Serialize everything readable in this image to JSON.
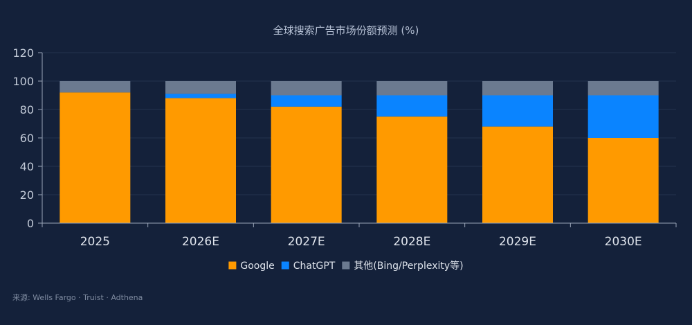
{
  "chart_data": {
    "type": "bar",
    "stacked": true,
    "title": "全球搜索广告市场份额预测 (%)",
    "categories": [
      "2025",
      "2026E",
      "2027E",
      "2028E",
      "2029E",
      "2030E"
    ],
    "series": [
      {
        "name": "Google",
        "color": "#ff9a00",
        "values": [
          92,
          88,
          82,
          75,
          68,
          60
        ]
      },
      {
        "name": "ChatGPT",
        "color": "#0a84ff",
        "values": [
          0,
          3,
          8,
          15,
          22,
          30
        ]
      },
      {
        "name": "其他(Bing/Perplexity等)",
        "color": "#6b7a90",
        "values": [
          8,
          9,
          10,
          10,
          10,
          10
        ]
      }
    ],
    "ylim": [
      0,
      120
    ],
    "yticks": [
      0,
      20,
      40,
      60,
      80,
      100,
      120
    ],
    "grid": true,
    "legend_position": "bottom-center"
  },
  "source": "来源: Wells Fargo · Truist · Adthena"
}
